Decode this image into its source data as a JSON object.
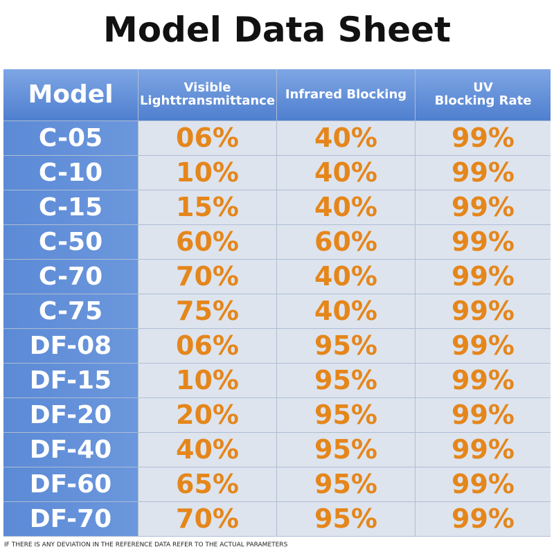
{
  "title": "Model Data Sheet",
  "table": {
    "header": [
      [
        "Model"
      ],
      [
        "Visible",
        "Lighttransmittance"
      ],
      [
        "Infrared Blocking"
      ],
      [
        "UV",
        "Blocking Rate"
      ]
    ],
    "rows": [
      [
        "C-05",
        "06%",
        "40%",
        "99%"
      ],
      [
        "C-10",
        "10%",
        "40%",
        "99%"
      ],
      [
        "C-15",
        "15%",
        "40%",
        "99%"
      ],
      [
        "C-50",
        "60%",
        "60%",
        "99%"
      ],
      [
        "C-70",
        "70%",
        "40%",
        "99%"
      ],
      [
        "C-75",
        "75%",
        "40%",
        "99%"
      ],
      [
        "DF-08",
        "06%",
        "95%",
        "99%"
      ],
      [
        "DF-15",
        "10%",
        "95%",
        "99%"
      ],
      [
        "DF-20",
        "20%",
        "95%",
        "99%"
      ],
      [
        "DF-40",
        "40%",
        "95%",
        "99%"
      ],
      [
        "DF-60",
        "65%",
        "95%",
        "99%"
      ],
      [
        "DF-70",
        "70%",
        "95%",
        "99%"
      ]
    ]
  },
  "footer": "IF THERE IS ANY DEVIATION IN THE REFERENCE DATA REFER TO THE ACTUAL PARAMETERS"
}
